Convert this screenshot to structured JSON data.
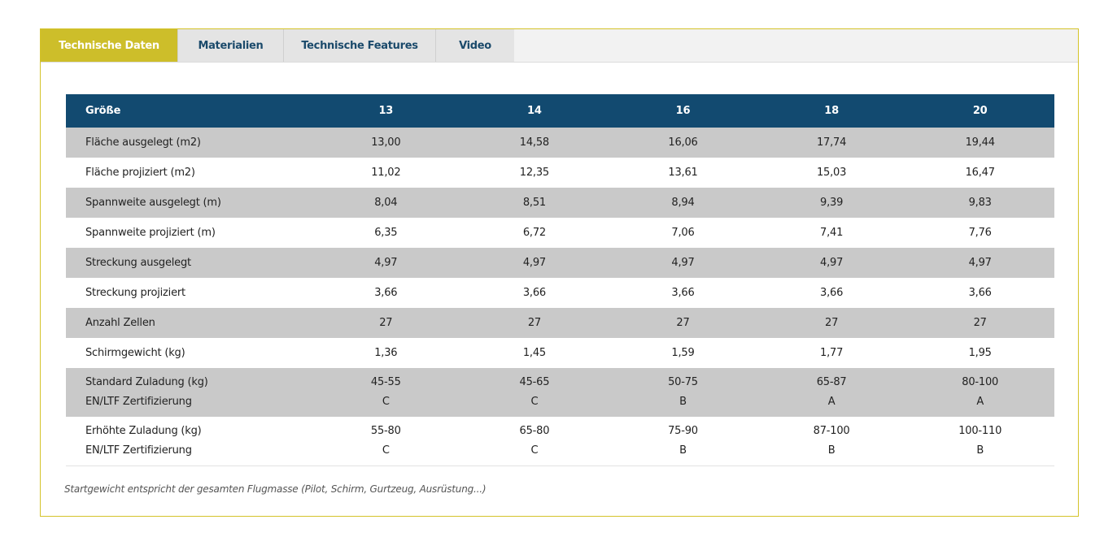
{
  "tabs": [
    {
      "label": "Technische Daten",
      "active": true
    },
    {
      "label": "Materialien",
      "active": false
    },
    {
      "label": "Technische Features",
      "active": false
    },
    {
      "label": "Video",
      "active": false
    }
  ],
  "table": {
    "header": [
      "Größe",
      "13",
      "14",
      "16",
      "18",
      "20"
    ],
    "rows": [
      {
        "label": "Fläche ausgelegt (m2)",
        "values": [
          "13,00",
          "14,58",
          "16,06",
          "17,74",
          "19,44"
        ]
      },
      {
        "label": "Fläche projiziert (m2)",
        "values": [
          "11,02",
          "12,35",
          "13,61",
          "15,03",
          "16,47"
        ]
      },
      {
        "label": "Spannweite ausgelegt (m)",
        "values": [
          "8,04",
          "8,51",
          "8,94",
          "9,39",
          "9,83"
        ]
      },
      {
        "label": "Spannweite projiziert (m)",
        "values": [
          "6,35",
          "6,72",
          "7,06",
          "7,41",
          "7,76"
        ]
      },
      {
        "label": "Streckung ausgelegt",
        "values": [
          "4,97",
          "4,97",
          "4,97",
          "4,97",
          "4,97"
        ]
      },
      {
        "label": "Streckung projiziert",
        "values": [
          "3,66",
          "3,66",
          "3,66",
          "3,66",
          "3,66"
        ]
      },
      {
        "label": "Anzahl Zellen",
        "values": [
          "27",
          "27",
          "27",
          "27",
          "27"
        ]
      },
      {
        "label": "Schirmgewicht (kg)",
        "values": [
          "1,36",
          "1,45",
          "1,59",
          "1,77",
          "1,95"
        ]
      },
      {
        "label": "Standard Zuladung (kg)",
        "label2": "EN/LTF Zertifizierung",
        "values": [
          "45-55",
          "45-65",
          "50-75",
          "65-87",
          "80-100"
        ],
        "values2": [
          "C",
          "C",
          "B",
          "A",
          "A"
        ]
      },
      {
        "label": "Erhöhte Zuladung (kg)",
        "label2": "EN/LTF Zertifizierung",
        "values": [
          "55-80",
          "65-80",
          "75-90",
          "87-100",
          "100-110"
        ],
        "values2": [
          "C",
          "C",
          "B",
          "B",
          "B"
        ]
      }
    ]
  },
  "note": "Startgewicht entspricht der gesamten Flugmasse (Pilot, Schirm, Gurtzeug, Ausrüstung...)",
  "colors": {
    "accent": "#cdbe2a",
    "header": "#124a70",
    "row_gray": "#c9c9c9"
  }
}
